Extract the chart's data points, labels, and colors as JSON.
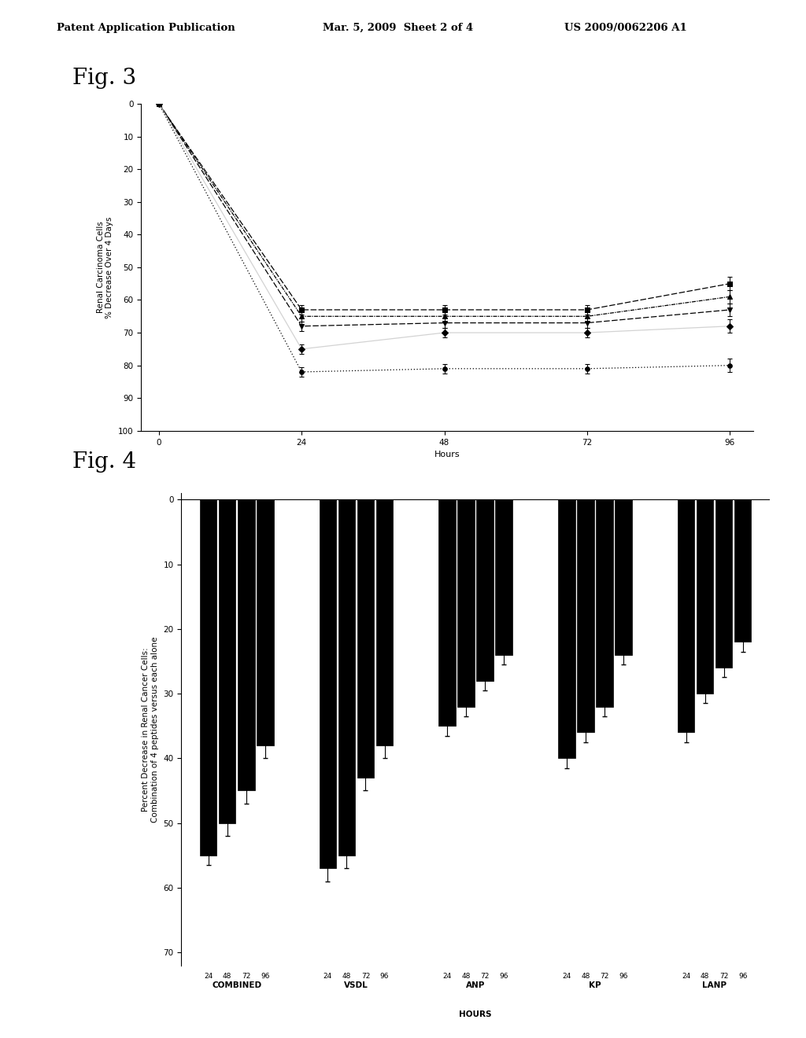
{
  "header_left": "Patent Application Publication",
  "header_mid": "Mar. 5, 2009  Sheet 2 of 4",
  "header_right": "US 2009/0062206 A1",
  "fig3_label": "Fig. 3",
  "fig4_label": "Fig. 4",
  "fig3": {
    "xlabel": "Hours",
    "ylabel": "Renal Carcinoma Cells\n% Decrease Over 4 Days",
    "xticks": [
      0,
      24,
      48,
      72,
      96
    ],
    "yticks": [
      0,
      10,
      20,
      30,
      40,
      50,
      60,
      70,
      80,
      90,
      100
    ],
    "hours": [
      0,
      24,
      48,
      72,
      96
    ],
    "series": [
      {
        "y": [
          0,
          63,
          63,
          63,
          55
        ],
        "yerr": [
          0.3,
          1.5,
          1.5,
          1.5,
          2.0
        ],
        "marker": "s",
        "linestyle": "--",
        "color": "black",
        "dashes": [
          6,
          2
        ]
      },
      {
        "y": [
          0,
          65,
          65,
          65,
          59
        ],
        "yerr": [
          0.3,
          1.5,
          1.5,
          1.5,
          2.0
        ],
        "marker": "^",
        "linestyle": "-.",
        "color": "black",
        "dashes": [
          4,
          2,
          1,
          2
        ]
      },
      {
        "y": [
          0,
          68,
          67,
          67,
          63
        ],
        "yerr": [
          0.3,
          1.5,
          1.5,
          1.5,
          2.0
        ],
        "marker": "v",
        "linestyle": "--",
        "color": "black",
        "dashes": [
          3,
          2
        ]
      },
      {
        "y": [
          0,
          75,
          70,
          70,
          68
        ],
        "yerr": [
          0.3,
          1.5,
          1.5,
          1.5,
          2.0
        ],
        "marker": "D",
        "linestyle": "-",
        "color": "lightgray",
        "dashes": []
      },
      {
        "y": [
          0,
          82,
          81,
          81,
          80
        ],
        "yerr": [
          0.3,
          1.5,
          1.5,
          1.5,
          2.0
        ],
        "marker": "o",
        "linestyle": ":",
        "color": "black",
        "dashes": [
          1,
          2
        ]
      }
    ]
  },
  "fig4": {
    "ylabel": "Percent Decrease in Renal Cancer Cells:\nCombination of 4 peptides versus each alone",
    "bar_width": 0.7,
    "group_labels": [
      "COMBINED",
      "VSDL",
      "ANP",
      "KP",
      "LANP"
    ],
    "hour_labels": [
      "24",
      "48",
      "72",
      "96"
    ],
    "yticks": [
      0,
      10,
      20,
      30,
      40,
      50,
      60,
      70
    ],
    "groups": {
      "COMBINED": {
        "values": [
          -55,
          -50,
          -45,
          -38
        ],
        "errors": [
          1.5,
          2.0,
          2.0,
          2.0
        ]
      },
      "VSDL": {
        "values": [
          -57,
          -55,
          -43,
          -38
        ],
        "errors": [
          2.0,
          2.0,
          2.0,
          2.0
        ]
      },
      "ANP": {
        "values": [
          -35,
          -32,
          -28,
          -24
        ],
        "errors": [
          1.5,
          1.5,
          1.5,
          1.5
        ]
      },
      "KP": {
        "values": [
          -40,
          -36,
          -32,
          -24
        ],
        "errors": [
          1.5,
          1.5,
          1.5,
          1.5
        ]
      },
      "LANP": {
        "values": [
          -36,
          -30,
          -26,
          -22
        ],
        "errors": [
          1.5,
          1.5,
          1.5,
          1.5
        ]
      }
    },
    "anp_extra_label": "HOURS"
  }
}
